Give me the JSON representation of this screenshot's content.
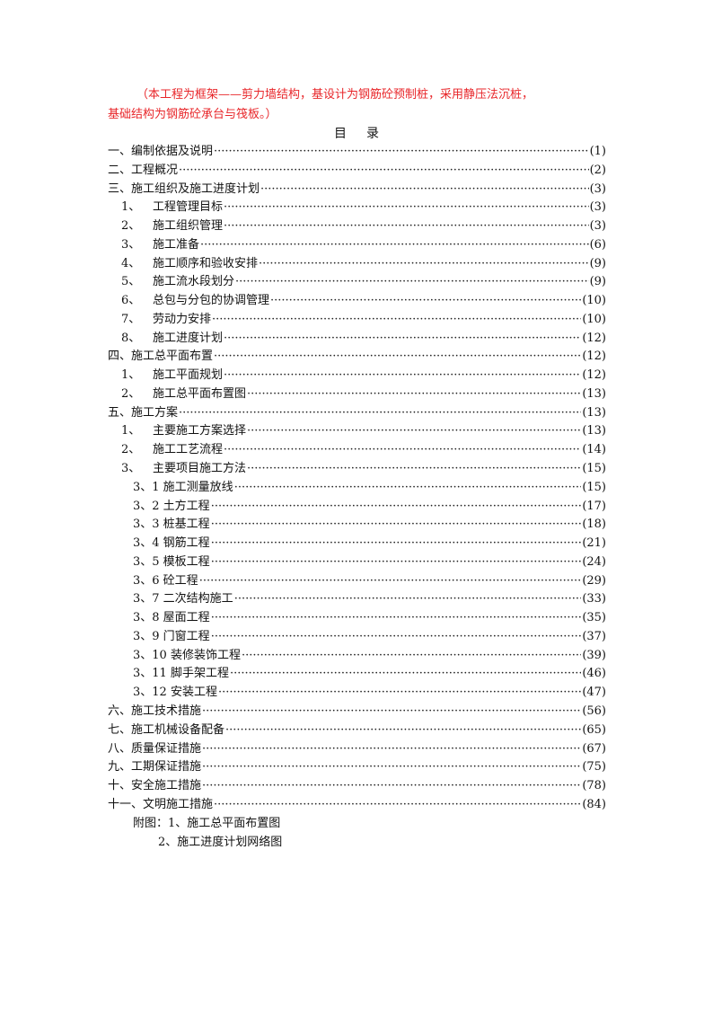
{
  "note": {
    "line1": "（本工程为框架——剪力墙结构，基设计为钢筋砼预制桩，采用静压法沉桩，",
    "line2": "基础结构为钢筋砼承台与筏板。）",
    "color": "#e8262a"
  },
  "toc_title": [
    "目",
    "录"
  ],
  "toc": [
    {
      "level": 0,
      "num": "",
      "text": "一、编制依据及说明",
      "page": "(1)"
    },
    {
      "level": 0,
      "num": "",
      "text": "二、工程概况",
      "page": "(2)"
    },
    {
      "level": 0,
      "num": "",
      "text": "三、施工组织及施工进度计划",
      "page": "(3)"
    },
    {
      "level": 1,
      "num": "1、",
      "text": "工程管理目标",
      "page": "(3)"
    },
    {
      "level": 1,
      "num": "2、",
      "text": "施工组织管理",
      "page": "(3)"
    },
    {
      "level": 1,
      "num": "3、",
      "text": "施工准备",
      "page": "(6)"
    },
    {
      "level": 1,
      "num": "4、",
      "text": "施工顺序和验收安排",
      "page": "(9)"
    },
    {
      "level": 1,
      "num": "5、",
      "text": "施工流水段划分",
      "page": "(9)"
    },
    {
      "level": 1,
      "num": "6、",
      "text": "总包与分包的协调管理",
      "page": "(10)"
    },
    {
      "level": 1,
      "num": "7、",
      "text": "劳动力安排",
      "page": "(10)"
    },
    {
      "level": 1,
      "num": "8、",
      "text": "施工进度计划",
      "page": "(12)"
    },
    {
      "level": 0,
      "num": "",
      "text": "四、施工总平面布置",
      "page": "(12)"
    },
    {
      "level": 1,
      "num": "1、",
      "text": "施工平面规划",
      "page": "(12)"
    },
    {
      "level": 1,
      "num": "2、",
      "text": "施工总平面布置图",
      "page": "(13)"
    },
    {
      "level": 0,
      "num": "",
      "text": "五、施工方案",
      "page": "(13)"
    },
    {
      "level": 1,
      "num": "1、",
      "text": "主要施工方案选择",
      "page": "(13)"
    },
    {
      "level": 1,
      "num": "2、",
      "text": "施工工艺流程",
      "page": "(14)"
    },
    {
      "level": 1,
      "num": "3、",
      "text": "主要项目施工方法",
      "page": "(15)"
    },
    {
      "level": 2,
      "num": "",
      "text": "3、1 施工测量放线",
      "page": "(15)"
    },
    {
      "level": 2,
      "num": "",
      "text": "3、2 土方工程",
      "page": "(17)"
    },
    {
      "level": 2,
      "num": "",
      "text": "3、3 桩基工程",
      "page": "(18)"
    },
    {
      "level": 2,
      "num": "",
      "text": "3、4 钢筋工程",
      "page": "(21)"
    },
    {
      "level": 2,
      "num": "",
      "text": "3、5 模板工程",
      "page": "(24)"
    },
    {
      "level": 2,
      "num": "",
      "text": "3、6 砼工程",
      "page": "(29)"
    },
    {
      "level": 2,
      "num": "",
      "text": "3、7 二次结构施工",
      "page": "(33)"
    },
    {
      "level": 2,
      "num": "",
      "text": "3、8 屋面工程",
      "page": "(35)"
    },
    {
      "level": 2,
      "num": "",
      "text": "3、9 门窗工程",
      "page": "(37)"
    },
    {
      "level": 2,
      "num": "",
      "text": "3、10 装修装饰工程",
      "page": "(39)"
    },
    {
      "level": 2,
      "num": "",
      "text": "3、11 脚手架工程",
      "page": "(46)"
    },
    {
      "level": 2,
      "num": "",
      "text": "3、12 安装工程",
      "page": "(47)"
    },
    {
      "level": 0,
      "num": "",
      "text": "六、施工技术措施",
      "page": "(56)"
    },
    {
      "level": 0,
      "num": "",
      "text": "七、施工机械设备配备",
      "page": "(65)"
    },
    {
      "level": 0,
      "num": "",
      "text": "八、质量保证措施",
      "page": "(67)"
    },
    {
      "level": 0,
      "num": "",
      "text": "九、工期保证措施",
      "page": "(75)"
    },
    {
      "level": 0,
      "num": "",
      "text": "十、安全施工措施",
      "page": "(78)"
    },
    {
      "level": 0,
      "num": "",
      "text": "十一、文明施工措施",
      "page": "(84)"
    }
  ],
  "appendix": {
    "line1": "附图：1、施工总平面布置图",
    "line2": "2、施工进度计划网络图"
  }
}
